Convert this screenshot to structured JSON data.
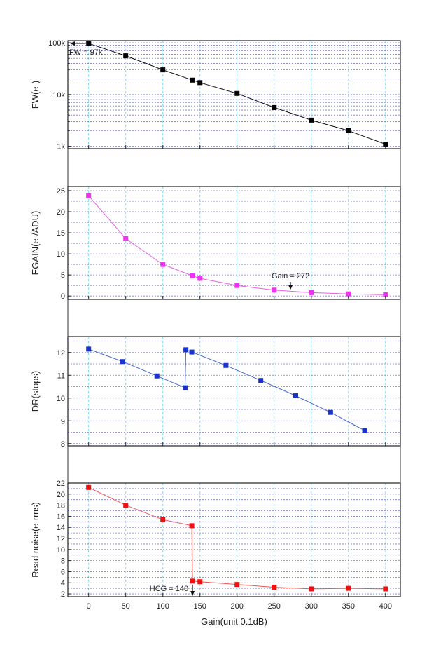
{
  "chart_data": [
    {
      "type": "line",
      "ylabel": "FW(e-)",
      "yscale": "log",
      "ylim": [
        900,
        110000
      ],
      "yticks": [
        1000,
        10000,
        100000
      ],
      "ytick_labels": [
        "1k",
        "10k",
        "100k"
      ],
      "x": [
        0,
        50,
        100,
        140,
        150,
        200,
        250,
        300,
        350,
        400
      ],
      "values": [
        97000,
        56000,
        30000,
        19000,
        17000,
        10500,
        5600,
        3200,
        2000,
        1100
      ],
      "color": "#111111",
      "marker_color": "#000000",
      "annotation": {
        "text": "FW = 97k",
        "x": 0,
        "y": 97000
      }
    },
    {
      "type": "line",
      "ylabel": "EGAIN(e-/ADU)",
      "yscale": "linear",
      "ylim": [
        -0.8,
        26
      ],
      "yticks": [
        0,
        5,
        10,
        15,
        20,
        25
      ],
      "ytick_labels": [
        "0",
        "5",
        "10",
        "15",
        "20",
        "25"
      ],
      "x": [
        0,
        50,
        100,
        140,
        150,
        200,
        250,
        300,
        350,
        400
      ],
      "values": [
        23.8,
        13.6,
        7.5,
        4.8,
        4.2,
        2.5,
        1.4,
        0.8,
        0.5,
        0.3
      ],
      "color": "#e060e0",
      "marker_color": "#ee33ee",
      "annotation": {
        "text": "Gain = 272",
        "x": 272,
        "y": 1.2
      }
    },
    {
      "type": "line",
      "ylabel": "DR(stops)",
      "yscale": "linear",
      "ylim": [
        7.9,
        12.7
      ],
      "yticks": [
        8,
        9,
        10,
        11,
        12
      ],
      "ytick_labels": [
        "8",
        "9",
        "10",
        "11",
        "12"
      ],
      "x": [
        0,
        46,
        92,
        130,
        131,
        139,
        185,
        232,
        279,
        326,
        372
      ],
      "values": [
        12.15,
        11.6,
        10.97,
        10.45,
        12.12,
        12.02,
        11.43,
        10.77,
        10.1,
        9.37,
        8.57
      ],
      "color": "#4466cc",
      "marker_color": "#1a33cc"
    },
    {
      "type": "line",
      "ylabel": "Read noise(e-rms)",
      "yscale": "linear",
      "ylim": [
        1.5,
        22
      ],
      "yticks": [
        2,
        4,
        6,
        8,
        10,
        12,
        14,
        16,
        18,
        20,
        22
      ],
      "ytick_labels": [
        "2",
        "4",
        "6",
        "8",
        "10",
        "12",
        "14",
        "16",
        "18",
        "20",
        "22"
      ],
      "x": [
        0,
        50,
        100,
        139,
        140,
        150,
        200,
        250,
        300,
        350,
        400
      ],
      "values": [
        21.2,
        18.0,
        15.4,
        14.3,
        4.3,
        4.2,
        3.7,
        3.2,
        2.9,
        3.0,
        2.9
      ],
      "color": "#ee5555",
      "marker_color": "#ee1111",
      "annotation": {
        "text": "HCG = 140",
        "x": 140,
        "y": 1.5
      }
    }
  ],
  "xaxis": {
    "label": "Gain(unit 0.1dB)",
    "xlim": [
      -28,
      420
    ],
    "ticks": [
      0,
      50,
      100,
      150,
      200,
      250,
      300,
      350,
      400
    ],
    "tick_labels": [
      "0",
      "50",
      "100",
      "150",
      "200",
      "250",
      "300",
      "350",
      "400"
    ]
  }
}
